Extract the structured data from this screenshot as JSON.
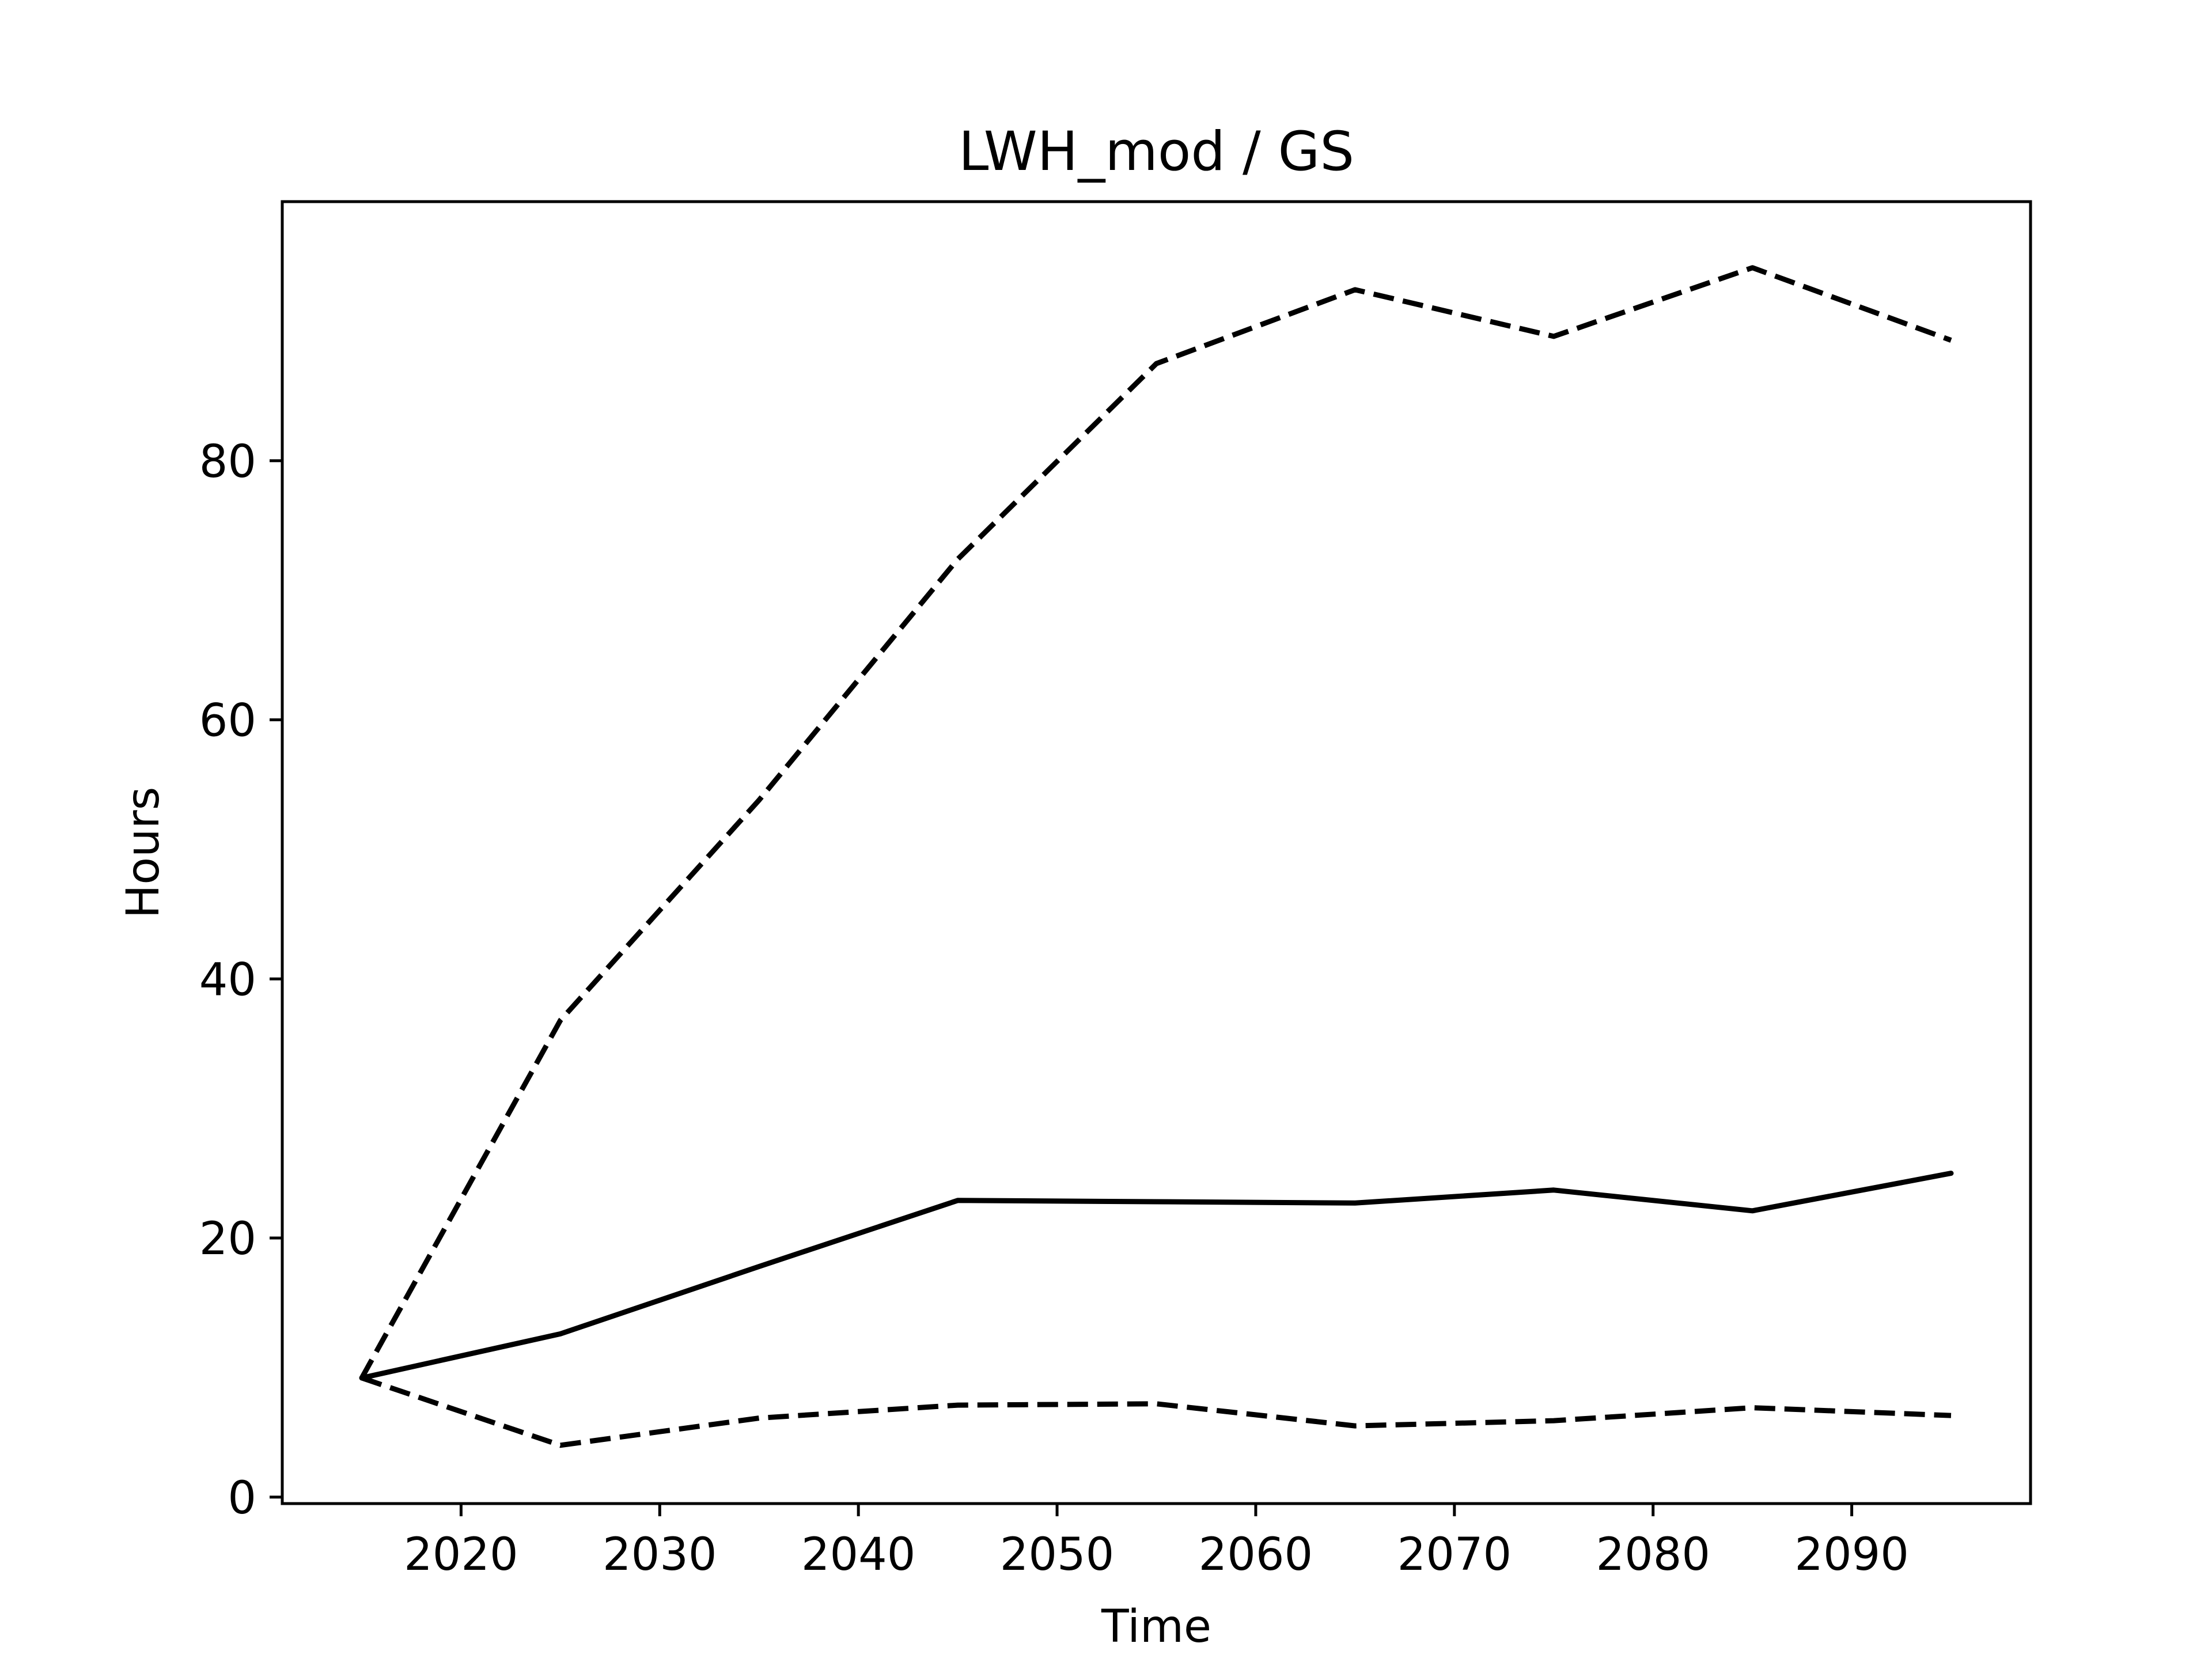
{
  "chart_data": {
    "type": "line",
    "title": "LWH_mod / GS",
    "xlabel": "Time",
    "ylabel": "Hours",
    "xlim": [
      2011,
      2099
    ],
    "ylim": [
      -0.5,
      100
    ],
    "xticks": [
      2020,
      2030,
      2040,
      2050,
      2060,
      2070,
      2080,
      2090
    ],
    "yticks": [
      0,
      20,
      40,
      60,
      80
    ],
    "xtick_labels": [
      "2020",
      "2030",
      "2040",
      "2050",
      "2060",
      "2070",
      "2080",
      "2090"
    ],
    "ytick_labels": [
      "0",
      "20",
      "40",
      "60",
      "80"
    ],
    "grid": false,
    "legend": "none",
    "x": [
      2015,
      2025,
      2035,
      2045,
      2055,
      2065,
      2075,
      2085,
      2095
    ],
    "series": [
      {
        "style": "solid",
        "color": "#000000",
        "values": [
          9.2,
          12.6,
          17.8,
          22.9,
          22.8,
          22.7,
          23.7,
          22.1,
          25.0
        ]
      },
      {
        "style": "dashed",
        "color": "#000000",
        "values": [
          9.2,
          36.8,
          53.8,
          72.4,
          87.5,
          93.2,
          89.6,
          94.9,
          89.3
        ]
      },
      {
        "style": "dashed",
        "color": "#000000",
        "values": [
          9.2,
          4.0,
          6.1,
          7.1,
          7.2,
          5.5,
          5.9,
          6.9,
          6.3
        ]
      }
    ]
  }
}
